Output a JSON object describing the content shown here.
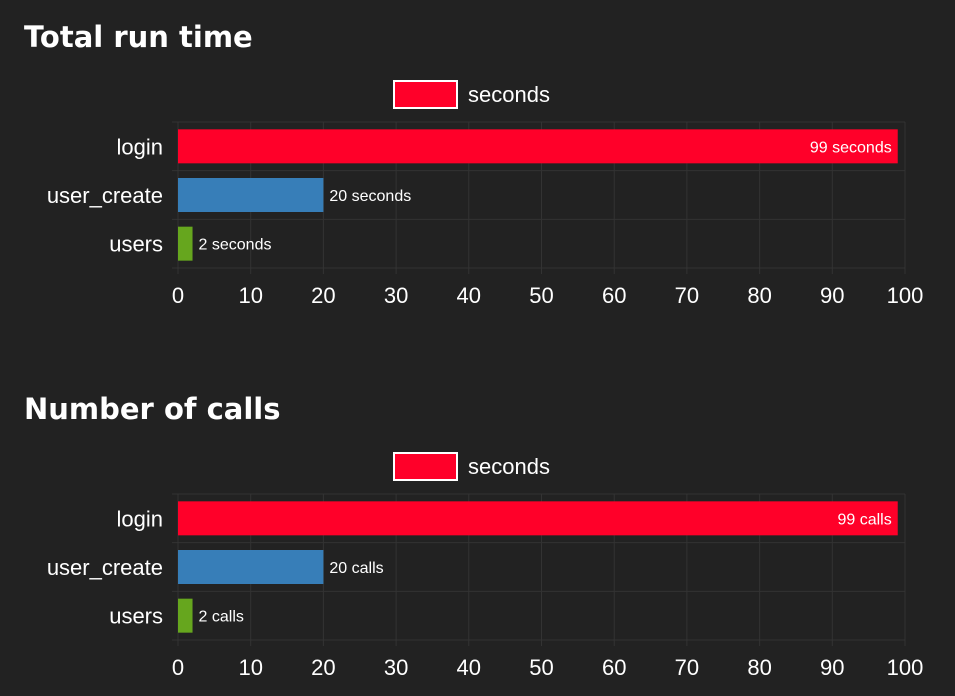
{
  "chart_data": [
    {
      "type": "bar",
      "orientation": "horizontal",
      "title": "Total run time",
      "legend": {
        "label": "seconds",
        "color": "#ff0029",
        "placement": "top-center"
      },
      "categories": [
        "login",
        "user_create",
        "users"
      ],
      "values": [
        99,
        20,
        2
      ],
      "data_labels": [
        "99 seconds",
        "20 seconds",
        "2 seconds"
      ],
      "colors": [
        "#ff0029",
        "#377eb8",
        "#66a61e"
      ],
      "xlim": [
        0,
        100
      ],
      "xticks": [
        "0",
        "10",
        "20",
        "30",
        "40",
        "50",
        "60",
        "70",
        "80",
        "90",
        "100"
      ],
      "grid": true
    },
    {
      "type": "bar",
      "orientation": "horizontal",
      "title": "Number of calls",
      "legend": {
        "label": "seconds",
        "color": "#ff0029",
        "placement": "top-center"
      },
      "categories": [
        "login",
        "user_create",
        "users"
      ],
      "values": [
        99,
        20,
        2
      ],
      "data_labels": [
        "99 calls",
        "20 calls",
        "2 calls"
      ],
      "colors": [
        "#ff0029",
        "#377eb8",
        "#66a61e"
      ],
      "xlim": [
        0,
        100
      ],
      "xticks": [
        "0",
        "10",
        "20",
        "30",
        "40",
        "50",
        "60",
        "70",
        "80",
        "90",
        "100"
      ],
      "grid": true
    }
  ]
}
